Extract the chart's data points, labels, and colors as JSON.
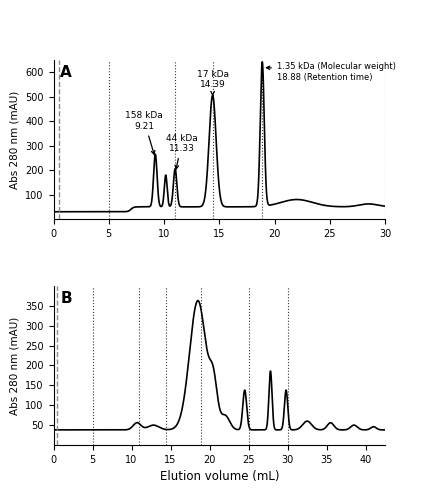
{
  "panel_A": {
    "title": "A",
    "xlim": [
      0.0,
      30.0
    ],
    "ylim": [
      0,
      650
    ],
    "yticks": [
      100,
      200,
      300,
      400,
      500,
      600
    ],
    "xticks": [
      0.0,
      5.0,
      10.0,
      15.0,
      20.0,
      25.0,
      30.0
    ],
    "ylabel": "Abs 280 nm (mAU)",
    "dotted_vlines": [
      5.0,
      11.0,
      14.39,
      18.88,
      30.0
    ],
    "dashed_vline": 0.5
  },
  "panel_B": {
    "title": "B",
    "xlim": [
      0.0,
      42.5
    ],
    "ylim": [
      0,
      400
    ],
    "yticks": [
      50,
      100,
      150,
      200,
      250,
      300,
      350
    ],
    "xticks": [
      0.0,
      5.0,
      10.0,
      15.0,
      20.0,
      25.0,
      30.0,
      35.0,
      40.0
    ],
    "ylabel": "Abs 280 nm (mAU)",
    "xlabel": "Elution volume (mL)",
    "dotted_vlines": [
      5.0,
      11.0,
      14.39,
      18.88,
      25.0,
      30.0
    ],
    "dashed_vline": 0.5
  },
  "line_color": "#000000",
  "line_width": 1.2,
  "bg_color": "#ffffff"
}
